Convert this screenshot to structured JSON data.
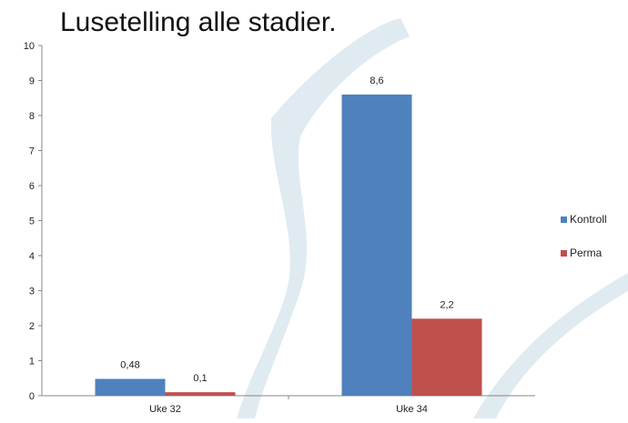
{
  "chart_data": {
    "type": "bar",
    "title": "Lusetelling alle stadier.",
    "categories": [
      "Uke 32",
      "Uke 34"
    ],
    "series": [
      {
        "name": "Kontroll",
        "values": [
          0.48,
          8.6
        ],
        "labels": [
          "0,48",
          "8,6"
        ],
        "color": "#4f81bd"
      },
      {
        "name": "Perma",
        "values": [
          0.1,
          2.2
        ],
        "labels": [
          "0,1",
          "2,2"
        ],
        "color": "#c0504d"
      }
    ],
    "ylim": [
      0,
      10
    ],
    "yticks": [
      "0",
      "1",
      "2",
      "3",
      "4",
      "5",
      "6",
      "7",
      "8",
      "9",
      "10"
    ],
    "xlabel": "",
    "ylabel": "",
    "grid": false,
    "legend_position": "right"
  }
}
